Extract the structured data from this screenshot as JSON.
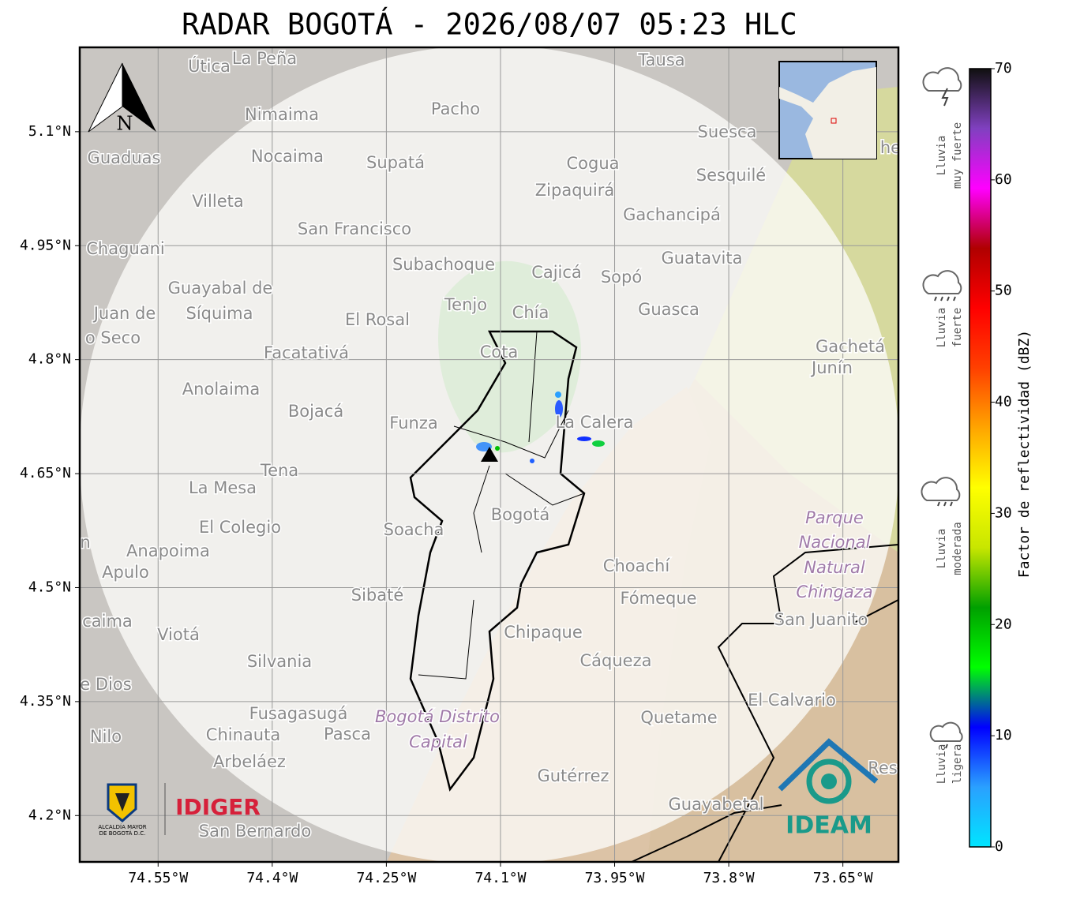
{
  "header": {
    "title": "RADAR BOGOTÁ - 2026/08/07 05:23 HLC"
  },
  "map": {
    "xlim": [
      -74.653,
      -73.577
    ],
    "ylim": [
      4.139,
      5.211
    ],
    "xticks": [
      {
        "value": -74.55,
        "label": "74.55°W"
      },
      {
        "value": -74.4,
        "label": "74.4°W"
      },
      {
        "value": -74.25,
        "label": "74.25°W"
      },
      {
        "value": -74.1,
        "label": "74.1°W"
      },
      {
        "value": -73.95,
        "label": "73.95°W"
      },
      {
        "value": -73.8,
        "label": "73.8°W"
      },
      {
        "value": -73.65,
        "label": "73.65°W"
      }
    ],
    "yticks": [
      {
        "value": 5.1,
        "label": "5.1°N"
      },
      {
        "value": 4.95,
        "label": "4.95°N"
      },
      {
        "value": 4.8,
        "label": "4.8°N"
      },
      {
        "value": 4.65,
        "label": "4.65°N"
      },
      {
        "value": 4.5,
        "label": "4.5°N"
      },
      {
        "value": 4.35,
        "label": "4.35°N"
      },
      {
        "value": 4.2,
        "label": "4.2°N"
      }
    ],
    "grid": true,
    "north": "N",
    "places": [
      "Útica",
      "La Peña",
      "Tausa",
      "Pacho",
      "Nimaima",
      "Suesca",
      "Guaduas",
      "Nocaima",
      "Supatá",
      "Cogua",
      "Sesquilé",
      "Zipaquirá",
      "Villeta",
      "Gachancipá",
      "San Francisco",
      "Chaguani",
      "Guatavita",
      "Subachoque",
      "Cajicá",
      "Sopó",
      "Guayabal de",
      "Síquima",
      "Juan de",
      "Tenjo",
      "Chía",
      "Guasca",
      "El Rosal",
      "o Seco",
      "Facatativá",
      "Cota",
      "Gachetá",
      "Junín",
      "Anolaima",
      "Bojacá",
      "Funza",
      "La Calera",
      "Tena",
      "La Mesa",
      "Bogotá",
      "Soacha",
      "El Colegio",
      "Parque",
      "Nacional",
      "Natural",
      "Chingaza",
      "n",
      "Anapoima",
      "Apulo",
      "Choachí",
      "Sibaté",
      "Fómeque",
      "San Juanito",
      "caima",
      "Viotá",
      "Chipaque",
      "Silvania",
      "Cáqueza",
      "e Dios",
      "El Calvario",
      "Fusagasugá",
      "Quetame",
      "Bogotá Distrito",
      "Capital",
      "Nilo",
      "Chinauta",
      "Pasca",
      "Arbeláez",
      "Gutérrez",
      "Res",
      "Guayabetal",
      "San Bernardo",
      "he"
    ]
  },
  "logos": {
    "alcaldia": [
      "ALCALDÍA MAYOR",
      "DE BOGOTÁ D.C."
    ],
    "idiger": "IDIGER",
    "ideam": "IDEAM"
  },
  "colorbar": {
    "label": "Factor de reflectividad (dBZ)",
    "lim": [
      0,
      70
    ],
    "ticks": [
      0,
      10,
      20,
      30,
      40,
      50,
      60,
      70
    ],
    "colors": [
      "#00e5ff",
      "#2aa0ff",
      "#0000ff",
      "#00ff00",
      "#00a000",
      "#c8e600",
      "#ffff00",
      "#ffa500",
      "#ff4000",
      "#ff0000",
      "#b00000",
      "#ff00ff",
      "#8040c0",
      "#101010"
    ]
  },
  "legend": [
    [
      "Lluvia",
      "muy fuerte"
    ],
    [
      "Lluvia",
      "fuerte"
    ],
    [
      "Lluvia",
      "moderada"
    ],
    [
      "Lluvia",
      "ligera"
    ]
  ]
}
